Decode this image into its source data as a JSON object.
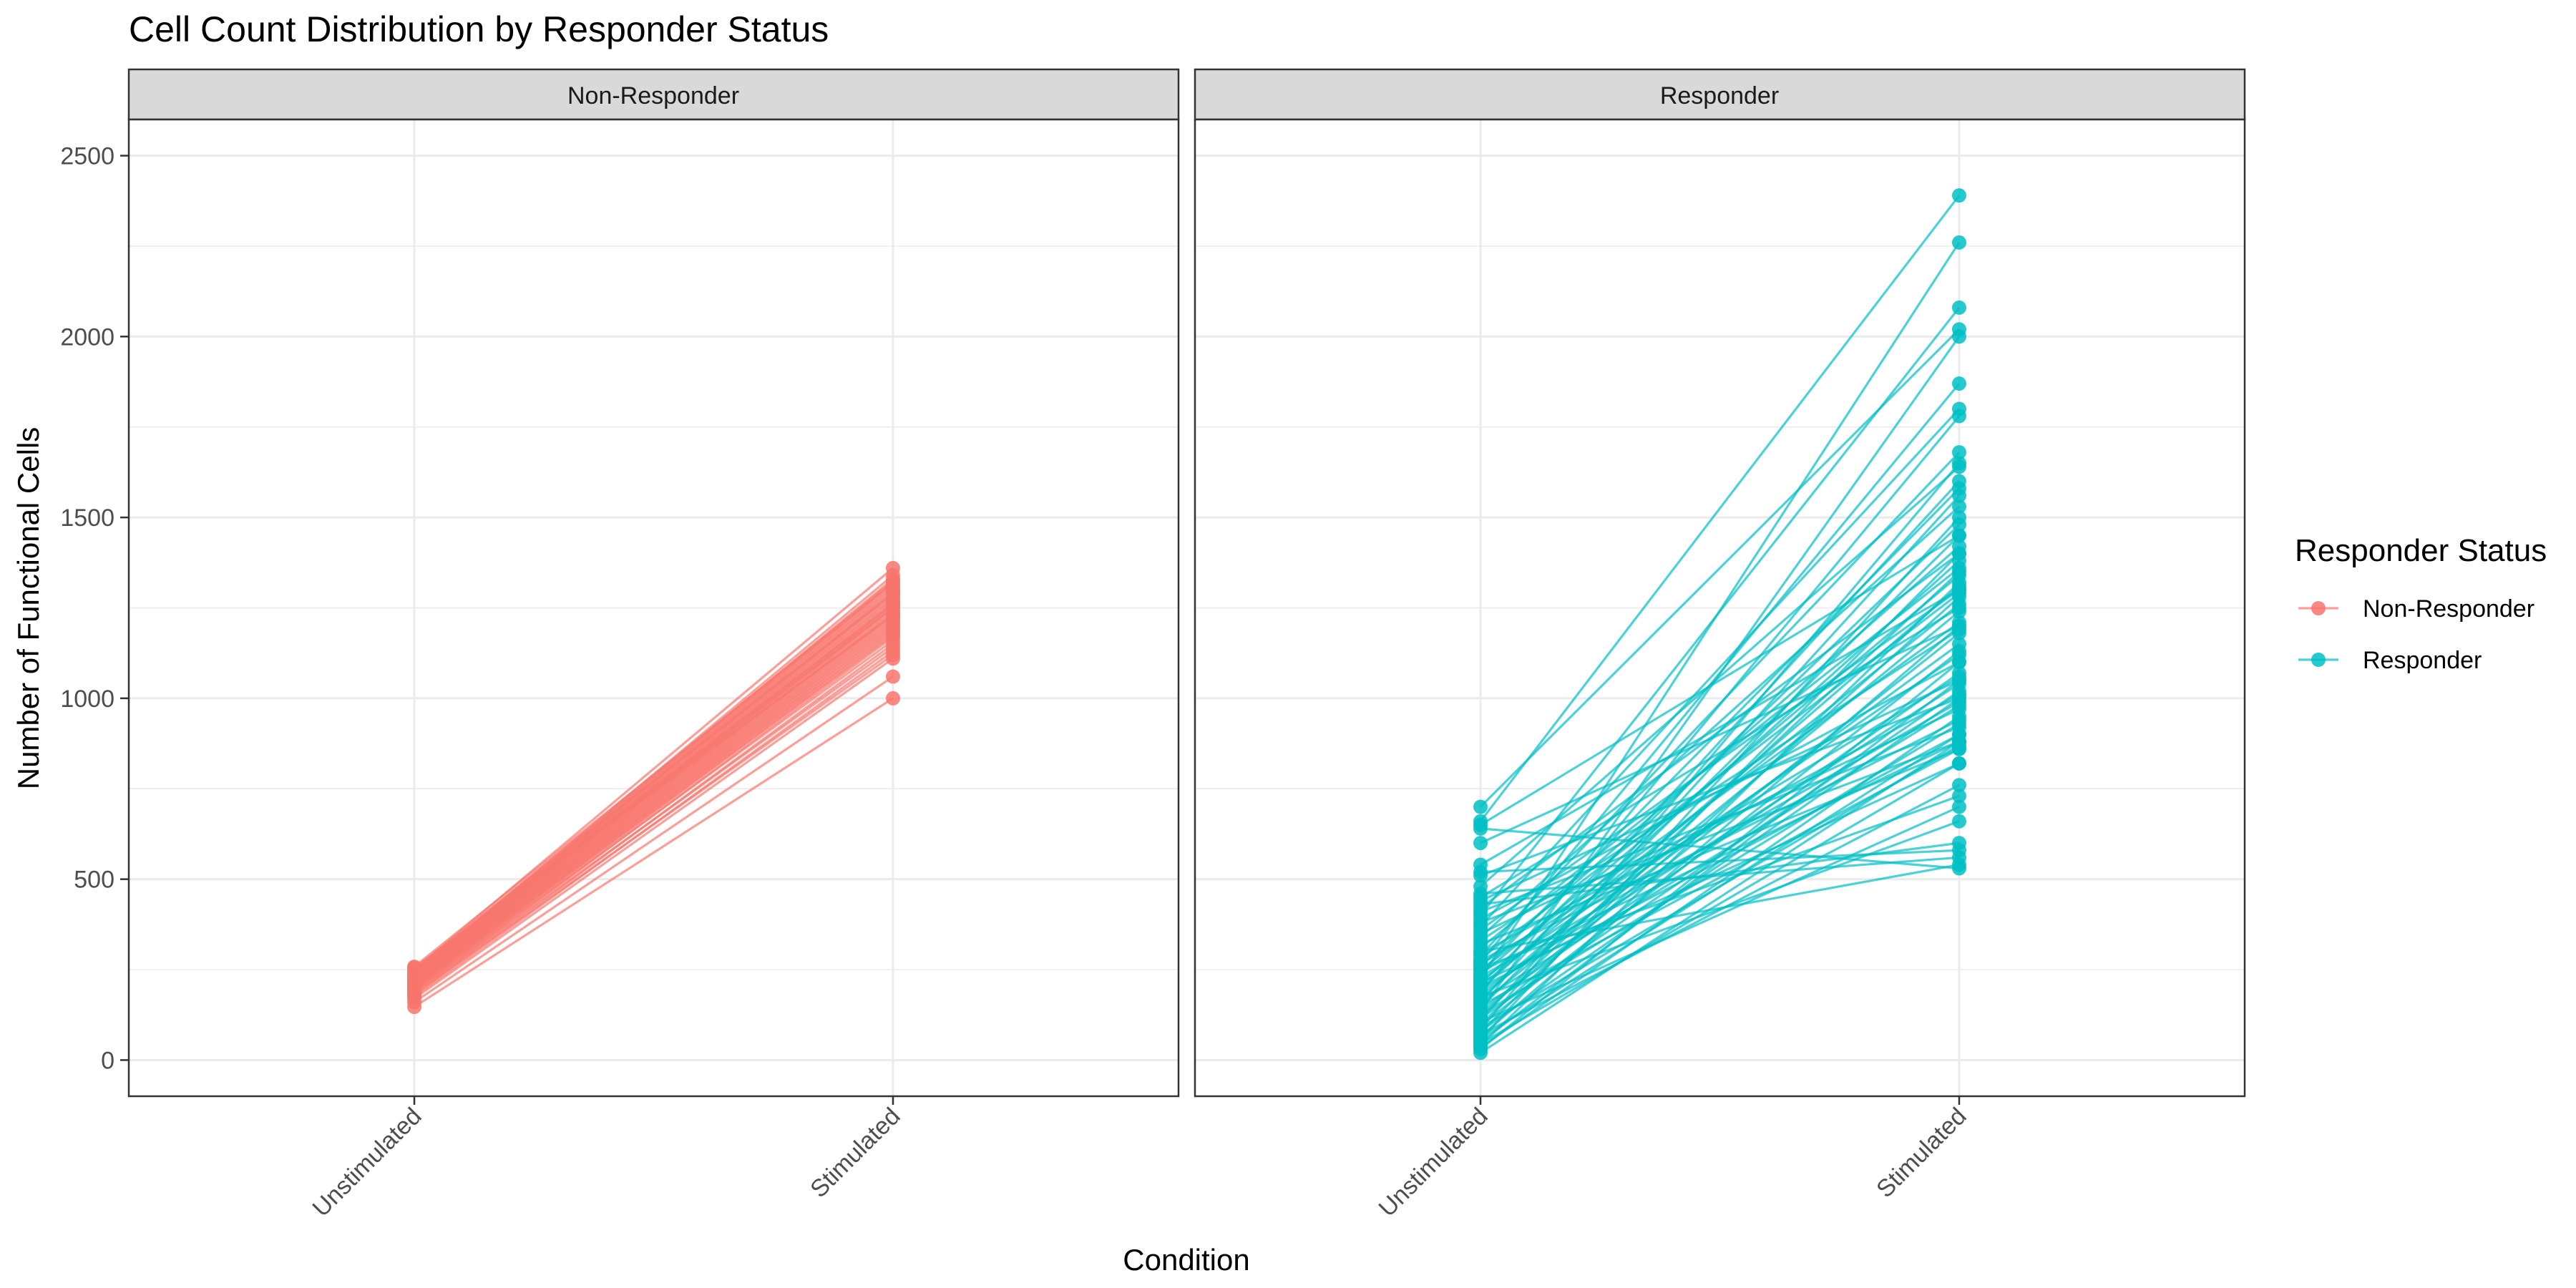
{
  "chart_data": {
    "type": "line",
    "title": "Cell Count Distribution by Responder Status",
    "xlabel": "Condition",
    "ylabel": "Number of Functional Cells",
    "categories": [
      "Unstimulated",
      "Stimulated"
    ],
    "ylim": [
      -100,
      2600
    ],
    "yticks": [
      0,
      500,
      1000,
      1500,
      2000,
      2500
    ],
    "grid": true,
    "legend": {
      "title": "Responder Status",
      "position": "right",
      "entries": [
        {
          "name": "Non-Responder",
          "color": "#F8766D"
        },
        {
          "name": "Responder",
          "color": "#00BFC4"
        }
      ]
    },
    "facets": [
      {
        "label": "Non-Responder",
        "color": "#F8766D",
        "note": "paired values per subject: [Unstimulated, Stimulated]",
        "pairs": [
          [
            147,
            1000
          ],
          [
            160,
            1060
          ],
          [
            170,
            1110
          ],
          [
            175,
            1130
          ],
          [
            180,
            1150
          ],
          [
            183,
            1120
          ],
          [
            186,
            1170
          ],
          [
            189,
            1140
          ],
          [
            192,
            1180
          ],
          [
            194,
            1160
          ],
          [
            196,
            1190
          ],
          [
            198,
            1200
          ],
          [
            200,
            1175
          ],
          [
            202,
            1210
          ],
          [
            204,
            1185
          ],
          [
            205,
            1220
          ],
          [
            207,
            1195
          ],
          [
            208,
            1230
          ],
          [
            210,
            1205
          ],
          [
            211,
            1240
          ],
          [
            212,
            1215
          ],
          [
            214,
            1250
          ],
          [
            215,
            1225
          ],
          [
            216,
            1260
          ],
          [
            218,
            1235
          ],
          [
            219,
            1270
          ],
          [
            220,
            1245
          ],
          [
            222,
            1280
          ],
          [
            223,
            1255
          ],
          [
            224,
            1290
          ],
          [
            226,
            1265
          ],
          [
            227,
            1300
          ],
          [
            228,
            1275
          ],
          [
            230,
            1310
          ],
          [
            231,
            1285
          ],
          [
            232,
            1320
          ],
          [
            234,
            1295
          ],
          [
            236,
            1330
          ],
          [
            238,
            1305
          ],
          [
            240,
            1340
          ],
          [
            242,
            1315
          ],
          [
            244,
            1250
          ],
          [
            246,
            1325
          ],
          [
            248,
            1260
          ],
          [
            250,
            1360
          ],
          [
            252,
            1290
          ],
          [
            255,
            1230
          ],
          [
            258,
            1320
          ]
        ]
      },
      {
        "label": "Responder",
        "color": "#00BFC4",
        "note": "paired values per subject: [Unstimulated, Stimulated]",
        "pairs": [
          [
            20,
            880
          ],
          [
            30,
            1100
          ],
          [
            35,
            950
          ],
          [
            40,
            1320
          ],
          [
            45,
            820
          ],
          [
            50,
            1050
          ],
          [
            55,
            1500
          ],
          [
            60,
            900
          ],
          [
            65,
            1200
          ],
          [
            70,
            760
          ],
          [
            75,
            1400
          ],
          [
            80,
            1000
          ],
          [
            85,
            1650
          ],
          [
            90,
            870
          ],
          [
            95,
            1130
          ],
          [
            100,
            1280
          ],
          [
            105,
            700
          ],
          [
            110,
            1560
          ],
          [
            115,
            1020
          ],
          [
            120,
            1350
          ],
          [
            125,
            930
          ],
          [
            130,
            1180
          ],
          [
            135,
            2000
          ],
          [
            140,
            1070
          ],
          [
            145,
            1450
          ],
          [
            150,
            860
          ],
          [
            155,
            1240
          ],
          [
            160,
            1600
          ],
          [
            165,
            980
          ],
          [
            170,
            1310
          ],
          [
            175,
            660
          ],
          [
            180,
            1150
          ],
          [
            185,
            1780
          ],
          [
            190,
            1040
          ],
          [
            195,
            1380
          ],
          [
            200,
            900
          ],
          [
            205,
            1260
          ],
          [
            210,
            1480
          ],
          [
            215,
            820
          ],
          [
            220,
            1120
          ],
          [
            225,
            2260
          ],
          [
            230,
            990
          ],
          [
            235,
            1340
          ],
          [
            240,
            1580
          ],
          [
            245,
            880
          ],
          [
            250,
            1210
          ],
          [
            255,
            730
          ],
          [
            260,
            1420
          ],
          [
            265,
            1060
          ],
          [
            270,
            1870
          ],
          [
            275,
            940
          ],
          [
            280,
            1290
          ],
          [
            290,
            1680
          ],
          [
            295,
            1010
          ],
          [
            300,
            540
          ],
          [
            310,
            1360
          ],
          [
            320,
            860
          ],
          [
            330,
            1190
          ],
          [
            340,
            1530
          ],
          [
            350,
            970
          ],
          [
            360,
            1300
          ],
          [
            370,
            1800
          ],
          [
            380,
            880
          ],
          [
            390,
            1100
          ],
          [
            400,
            2080
          ],
          [
            410,
            920
          ],
          [
            420,
            1400
          ],
          [
            430,
            600
          ],
          [
            440,
            1050
          ],
          [
            450,
            1250
          ],
          [
            460,
            560
          ],
          [
            480,
            1640
          ],
          [
            510,
            1000
          ],
          [
            520,
            580
          ],
          [
            540,
            1300
          ],
          [
            640,
            530
          ],
          [
            650,
            1450
          ],
          [
            660,
            2390
          ],
          [
            700,
            2020
          ],
          [
            600,
            1200
          ]
        ]
      }
    ]
  }
}
